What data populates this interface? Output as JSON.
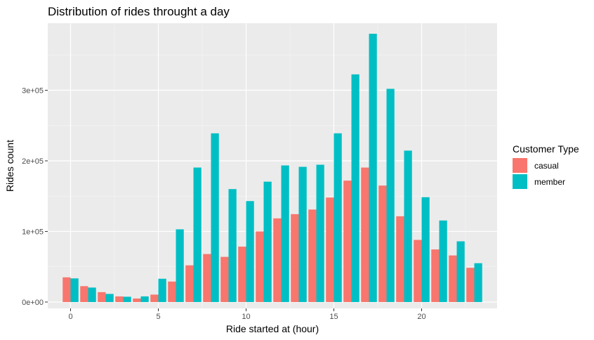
{
  "chart_data": {
    "type": "bar",
    "title": "Distribution of rides throught a day",
    "xlabel": "Ride started at (hour)",
    "ylabel": "Rides count",
    "x": [
      0,
      1,
      2,
      3,
      4,
      5,
      6,
      7,
      8,
      9,
      10,
      11,
      12,
      13,
      14,
      15,
      16,
      17,
      18,
      19,
      20,
      21,
      22,
      23
    ],
    "xlim": [
      -1.3,
      24.3
    ],
    "ylim": [
      -9000,
      395000
    ],
    "x_ticks": [
      0,
      5,
      10,
      15,
      20
    ],
    "x_tick_labels": [
      "0",
      "5",
      "10",
      "15",
      "20"
    ],
    "y_ticks": [
      0,
      100000,
      200000,
      300000
    ],
    "y_tick_labels": [
      "0e+00",
      "1e+05",
      "2e+05",
      "3e+05"
    ],
    "grid": true,
    "legend": {
      "title": "Customer Type",
      "position": "right"
    },
    "series": [
      {
        "name": "casual",
        "color": "#F8766D",
        "values": [
          35000,
          22500,
          14000,
          8000,
          5000,
          10500,
          29000,
          52000,
          68000,
          64000,
          78500,
          100000,
          118500,
          124500,
          131000,
          148000,
          172000,
          190500,
          165000,
          121500,
          88000,
          74500,
          66000,
          48500
        ]
      },
      {
        "name": "member",
        "color": "#00BFC4",
        "values": [
          33500,
          20500,
          11500,
          7500,
          8000,
          33000,
          103000,
          190500,
          239000,
          160000,
          143000,
          170500,
          193500,
          191500,
          194500,
          239000,
          322500,
          380000,
          302000,
          214500,
          148500,
          115500,
          86000,
          55000
        ]
      }
    ]
  }
}
